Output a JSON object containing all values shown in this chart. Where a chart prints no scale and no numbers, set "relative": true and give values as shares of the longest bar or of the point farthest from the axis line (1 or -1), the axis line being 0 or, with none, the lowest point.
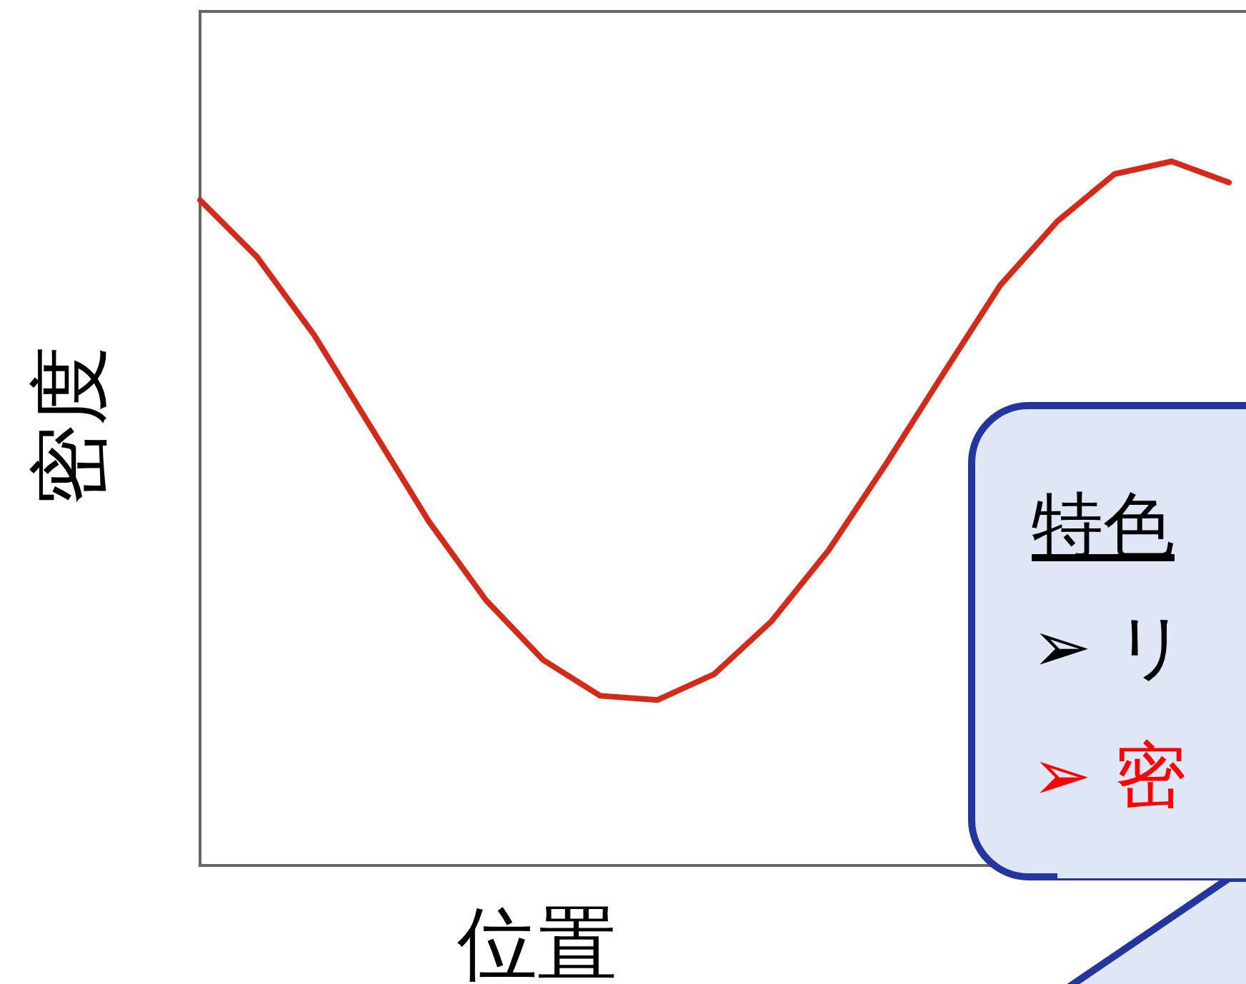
{
  "chart_data": {
    "type": "line",
    "relative": true,
    "xlabel": "位置",
    "ylabel": "密度",
    "color": "#d42a1a",
    "categories": [
      null,
      null,
      null,
      null,
      null,
      null,
      null,
      null,
      null,
      null,
      null,
      null,
      null,
      null,
      null,
      null,
      null,
      null,
      null
    ],
    "values": [
      0.945,
      0.864,
      0.753,
      0.621,
      0.489,
      0.377,
      0.292,
      0.241,
      0.235,
      0.272,
      0.347,
      0.448,
      0.57,
      0.698,
      0.824,
      0.915,
      0.982,
      1,
      0.97
    ],
    "annotations": [
      "特色",
      "➢ リ",
      "➢ 密"
    ]
  }
}
